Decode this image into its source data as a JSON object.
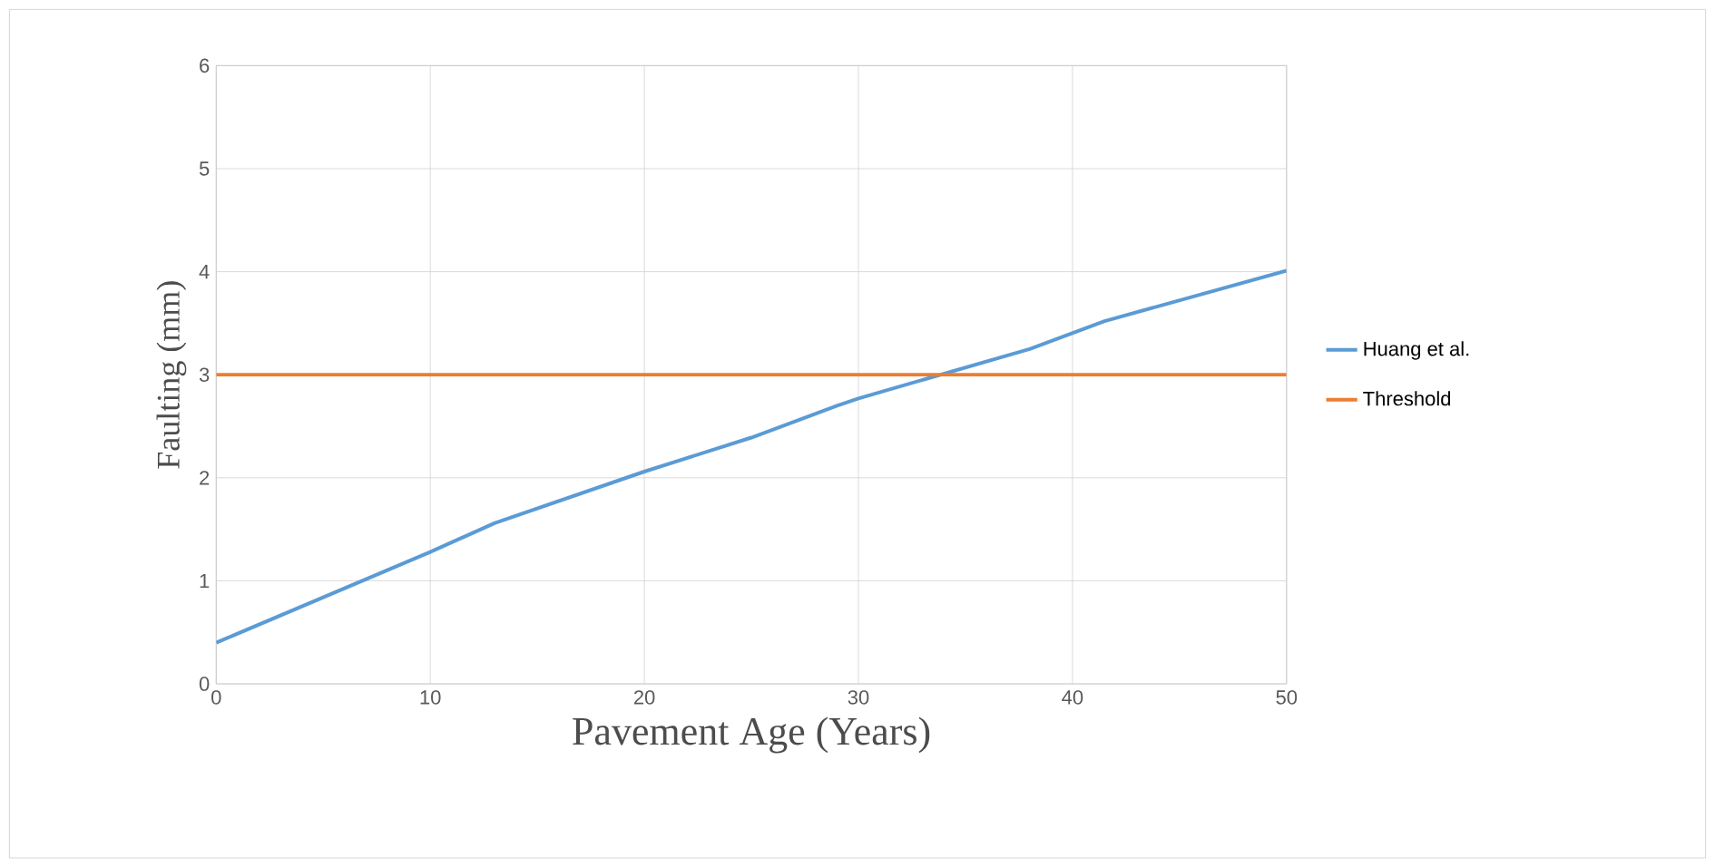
{
  "chart_data": {
    "type": "line",
    "xlabel": "Pavement Age (Years)",
    "ylabel": "Faulting (mm)",
    "xlim": [
      0,
      50
    ],
    "ylim": [
      0,
      6
    ],
    "xticks": [
      0,
      10,
      20,
      30,
      40,
      50
    ],
    "yticks": [
      0,
      1,
      2,
      3,
      4,
      5,
      6
    ],
    "grid": true,
    "legend": "right",
    "marker": "none",
    "line_style": "solid",
    "series": [
      {
        "name": "Huang et al.",
        "color": "#5b9bd5",
        "x": [
          0,
          10,
          13,
          20,
          25,
          29,
          30,
          38,
          41.5,
          50
        ],
        "values": [
          0.4,
          1.28,
          1.56,
          2.06,
          2.39,
          2.7,
          2.77,
          3.25,
          3.52,
          4.01
        ]
      },
      {
        "name": "Threshold",
        "color": "#ed7d31",
        "x": [
          0,
          50
        ],
        "values": [
          3,
          3
        ]
      }
    ]
  }
}
